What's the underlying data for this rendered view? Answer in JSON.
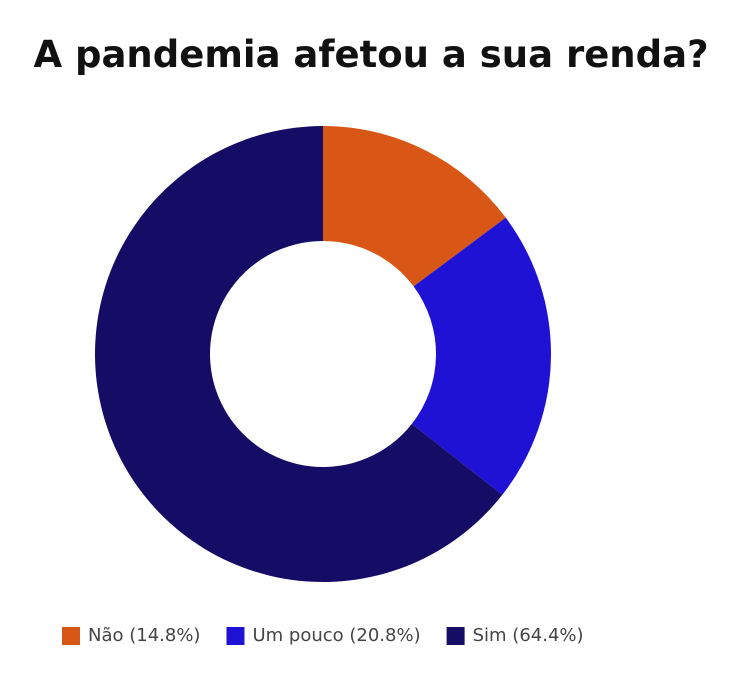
{
  "chart_data": {
    "type": "donut",
    "title": "A pandemia afetou a sua renda?",
    "categories": [
      "Não (14.8%)",
      "Um pouco (20.8%)",
      "Sim (64.4%)"
    ],
    "values": [
      14.8,
      20.8,
      64.4
    ],
    "colors": [
      "#d95716",
      "#1f12d4",
      "#150c66"
    ],
    "legend": "bottom"
  }
}
